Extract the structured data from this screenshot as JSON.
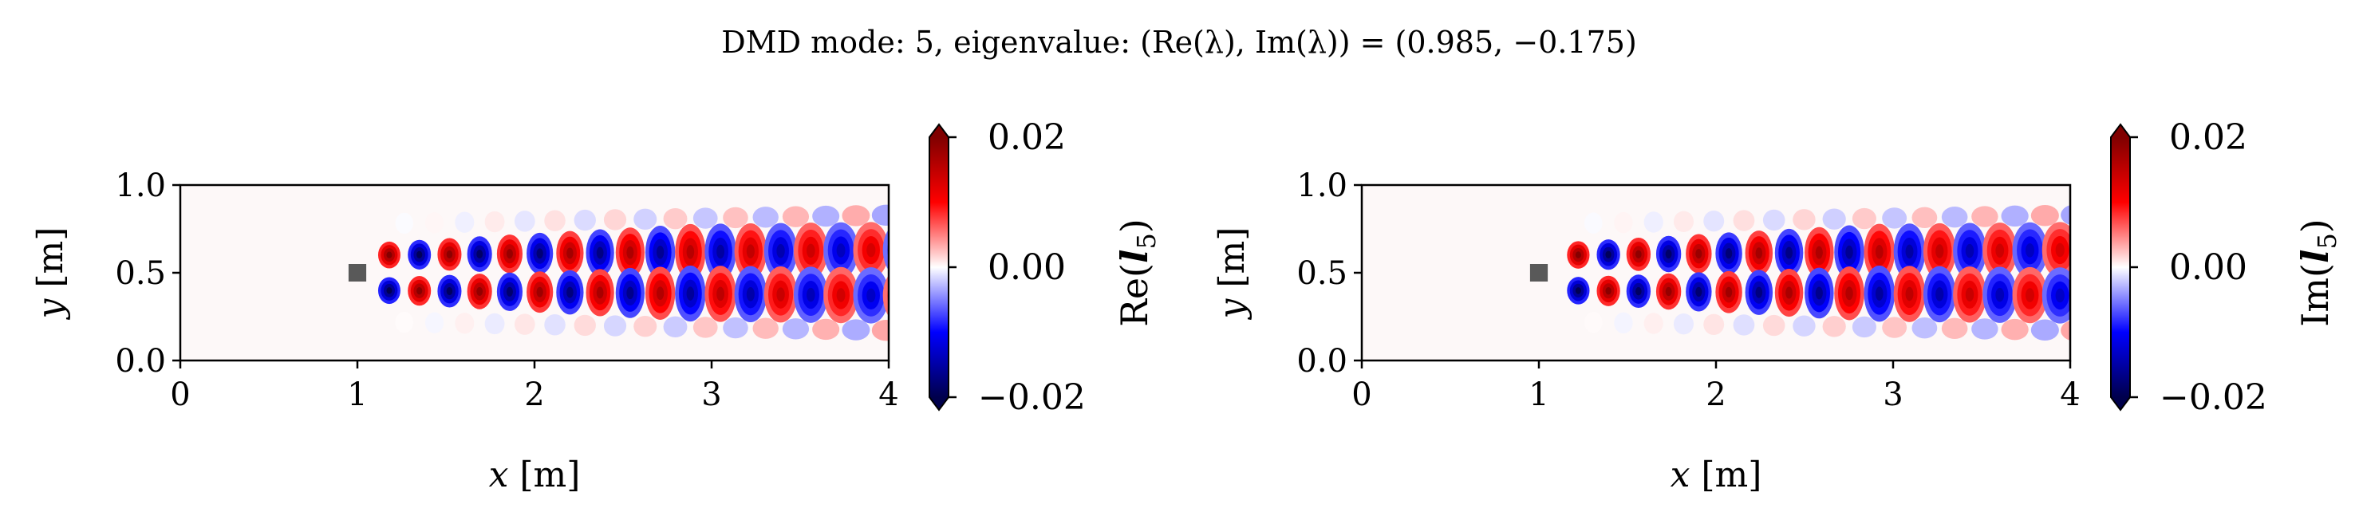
{
  "figure": {
    "title": "DMD mode: 5, eigenvalue: (Re(λ), Im(λ)) = (0.985, −0.175)",
    "background": "#ffffff",
    "colormap": "seismic",
    "colormap_colors": [
      "#00004c",
      "#0000ff",
      "#ffffff",
      "#ff0000",
      "#800000"
    ]
  },
  "chart_data": [
    {
      "type": "heatmap",
      "title": "",
      "xlabel_var": "x",
      "xlabel_unit": " [m]",
      "ylabel_var": "y",
      "ylabel_unit": " [m]",
      "xlim": [
        0,
        4
      ],
      "ylim": [
        0,
        1
      ],
      "xticks": [
        "0",
        "1",
        "2",
        "3",
        "4"
      ],
      "yticks": [
        "0.0",
        "0.5",
        "1.0"
      ],
      "colorbar": {
        "label": "Re(l5)",
        "label_prefix": "Re(",
        "label_var": "l",
        "label_sub": "5",
        "label_suffix": ")",
        "range": [
          -0.02,
          0.02
        ],
        "ticks": [
          "−0.02",
          "0.00",
          "0.02"
        ],
        "extend": "both"
      },
      "obstacle": {
        "x": [
          0.95,
          1.05
        ],
        "y": [
          0.45,
          0.55
        ],
        "color": "#595959"
      },
      "wake": {
        "start_x": 1.05,
        "amplitude": 0.02,
        "wavelength": 0.34,
        "phase": 0.0,
        "center_y": 0.5,
        "lobe_offset_y": 0.1,
        "antisymmetric": true
      }
    },
    {
      "type": "heatmap",
      "title": "",
      "xlabel_var": "x",
      "xlabel_unit": " [m]",
      "ylabel_var": "y",
      "ylabel_unit": " [m]",
      "xlim": [
        0,
        4
      ],
      "ylim": [
        0,
        1
      ],
      "xticks": [
        "0",
        "1",
        "2",
        "3",
        "4"
      ],
      "yticks": [
        "0.0",
        "0.5",
        "1.0"
      ],
      "colorbar": {
        "label": "Im(l5)",
        "label_prefix": "Im(",
        "label_var": "l",
        "label_sub": "5",
        "label_suffix": ")",
        "range": [
          -0.02,
          0.02
        ],
        "ticks": [
          "−0.02",
          "0.00",
          "0.02"
        ],
        "extend": "both"
      },
      "obstacle": {
        "x": [
          0.95,
          1.05
        ],
        "y": [
          0.45,
          0.55
        ],
        "color": "#595959"
      },
      "wake": {
        "start_x": 1.05,
        "amplitude": 0.02,
        "wavelength": 0.34,
        "phase": 1.57,
        "center_y": 0.5,
        "lobe_offset_y": 0.1,
        "antisymmetric": true
      }
    }
  ]
}
